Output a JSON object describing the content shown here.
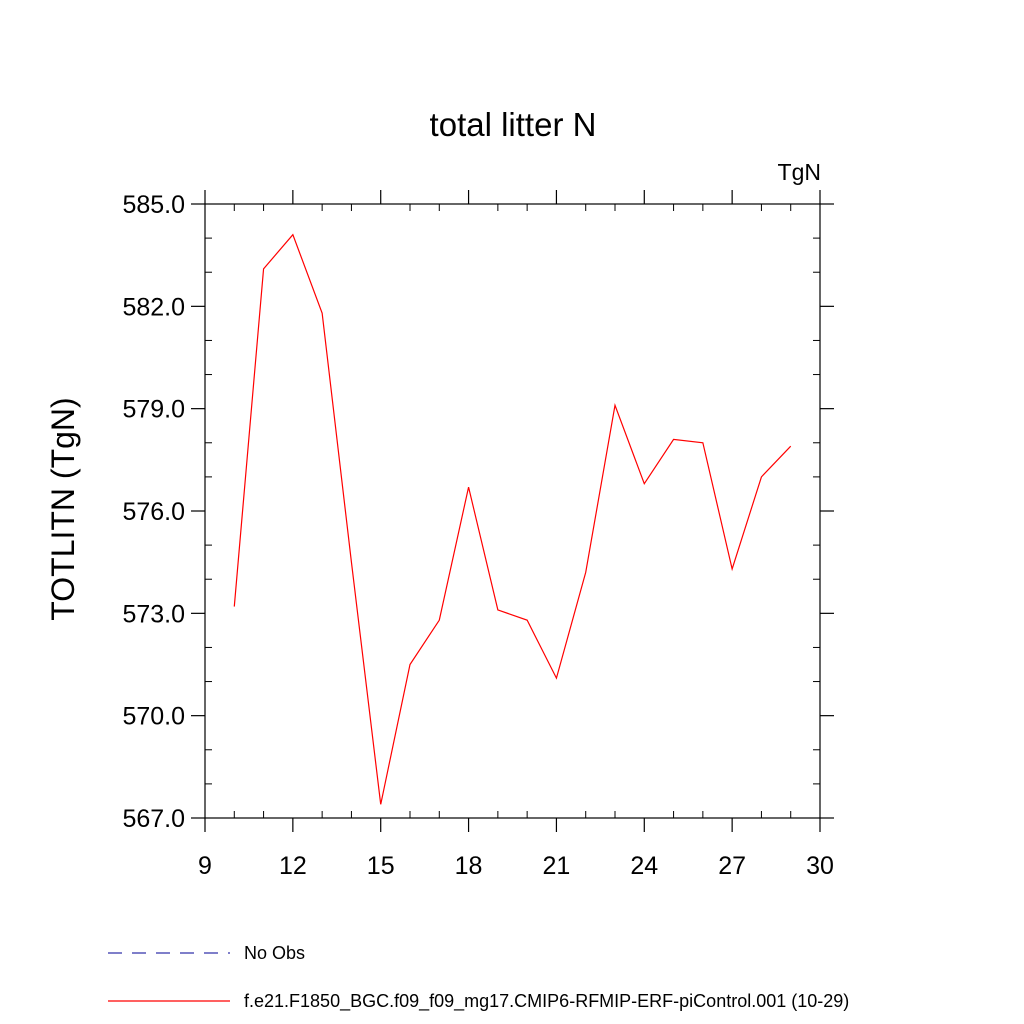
{
  "chart_data": {
    "type": "line",
    "title": "total litter N",
    "units_label": "TgN",
    "xlabel": "",
    "ylabel": "TOTLITN  (TgN)",
    "xlim": [
      9,
      30
    ],
    "ylim": [
      567.0,
      585.0
    ],
    "xticks": [
      9,
      12,
      15,
      18,
      21,
      24,
      27,
      30
    ],
    "xtick_labels": [
      "9",
      "12",
      "15",
      "18",
      "21",
      "24",
      "27",
      "30"
    ],
    "yticks": [
      567.0,
      570.0,
      573.0,
      576.0,
      579.0,
      582.0,
      585.0
    ],
    "ytick_labels": [
      "567.0",
      "570.0",
      "573.0",
      "576.0",
      "579.0",
      "582.0",
      "585.0"
    ],
    "x_minor_step": 1,
    "y_minor_step": 1,
    "grid": false,
    "series": [
      {
        "name": "f.e21.F1850_BGC.f09_f09_mg17.CMIP6-RFMIP-ERF-piControl.001 (10-29)",
        "color": "#ff0000",
        "x": [
          10,
          11,
          12,
          13,
          14,
          15,
          16,
          17,
          18,
          19,
          20,
          21,
          22,
          23,
          24,
          25,
          26,
          27,
          28,
          29
        ],
        "values": [
          573.2,
          583.1,
          584.1,
          581.8,
          574.5,
          567.4,
          571.5,
          572.8,
          576.7,
          573.1,
          572.8,
          571.1,
          574.2,
          579.1,
          576.8,
          578.1,
          578.0,
          574.3,
          577.0,
          577.9
        ]
      }
    ],
    "legend": {
      "placement": "bottom-left",
      "entries": [
        {
          "label": "No Obs",
          "color": "#3333aa",
          "style": "dashed"
        },
        {
          "label": "f.e21.F1850_BGC.f09_f09_mg17.CMIP6-RFMIP-ERF-piControl.001 (10-29)",
          "color": "#ff0000",
          "style": "solid"
        }
      ]
    }
  }
}
